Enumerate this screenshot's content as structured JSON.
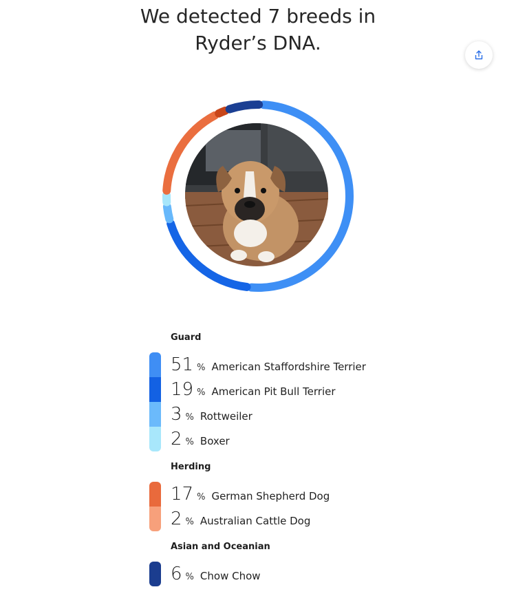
{
  "header": {
    "headline_line1": "We detected 7 breeds in",
    "headline_line2": "Ryder’s DNA."
  },
  "share": {
    "icon": "share-icon"
  },
  "photo": {
    "subject": "puppy-photo"
  },
  "colors": {
    "guard": [
      "#3e8ff5",
      "#1565e6",
      "#67b8fb",
      "#a6e6fb"
    ],
    "herding": [
      "#ea6e3f",
      "#c8461a",
      "#f8a27c"
    ],
    "asian": [
      "#1b3f93",
      "#3a6cc3"
    ]
  },
  "groups": [
    {
      "title": "Guard",
      "bar_colors": [
        "#3f8ef4",
        "#1361e3",
        "#6bbafb",
        "#a8e7fb"
      ],
      "breeds": [
        {
          "pct": "51",
          "sym": "%",
          "name": "American Staffordshire Terrier"
        },
        {
          "pct": "19",
          "sym": "%",
          "name": "American Pit Bull Terrier"
        },
        {
          "pct": "3",
          "sym": "%",
          "name": "Rottweiler"
        },
        {
          "pct": "2",
          "sym": "%",
          "name": "Boxer"
        }
      ]
    },
    {
      "title": "Herding",
      "bar_colors": [
        "#e96a3c",
        "#f7a07b"
      ],
      "breeds": [
        {
          "pct": "17",
          "sym": "%",
          "name": "German Shepherd Dog"
        },
        {
          "pct": "2",
          "sym": "%",
          "name": "Australian Cattle Dog"
        }
      ]
    },
    {
      "title": "Asian and Oceanian",
      "bar_colors": [
        "#1b3d8f"
      ],
      "breeds": [
        {
          "pct": "6",
          "sym": "%",
          "name": "Chow Chow"
        }
      ]
    }
  ]
}
